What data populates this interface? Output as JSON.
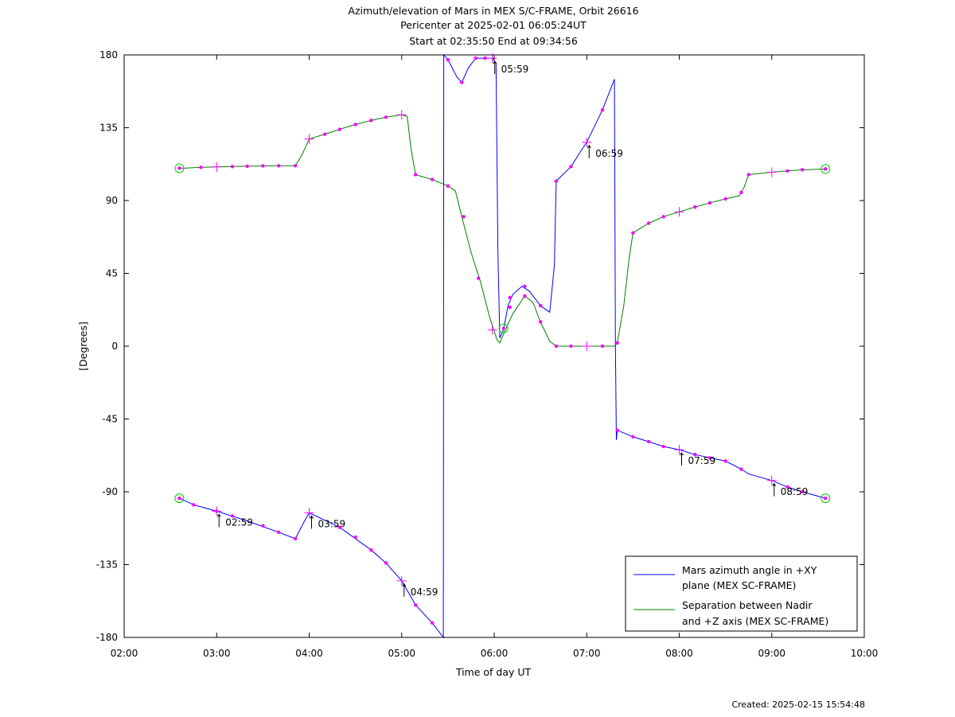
{
  "chart_data": {
    "type": "line",
    "title_lines": [
      "Azimuth/elevation of Mars in MEX S/C-FRAME,  Orbit 26616",
      "Pericenter at 2025-02-01 06:05:24UT",
      "Start at 02:35:50 End at 09:34:56"
    ],
    "xlabel": "Time of day UT",
    "ylabel": "[Degrees]",
    "x_unit": "hours",
    "xlim": [
      2,
      10
    ],
    "ylim": [
      -180,
      180
    ],
    "x_ticks": [
      2,
      3,
      4,
      5,
      6,
      7,
      8,
      9,
      10
    ],
    "x_tick_labels": [
      "02:00",
      "03:00",
      "04:00",
      "05:00",
      "06:00",
      "07:00",
      "08:00",
      "09:00",
      "10:00"
    ],
    "y_ticks": [
      180,
      135,
      90,
      45,
      0,
      -45,
      -90,
      -135,
      -180
    ],
    "y_tick_labels": [
      "180",
      "135",
      "90",
      "45",
      "0",
      "-45",
      "-90",
      "-135",
      "-180"
    ],
    "grid": false,
    "legend_position": "bottom-right",
    "series": [
      {
        "name": "Mars azimuth angle in +XY plane (MEX SC-FRAME)",
        "legend_lines": [
          "Mars azimuth angle in +XY",
          "plane (MEX SC-FRAME)"
        ],
        "color": "#0000ff",
        "points": [
          [
            2.597,
            -94
          ],
          [
            2.75,
            -98
          ],
          [
            3.0,
            -102
          ],
          [
            3.33,
            -108
          ],
          [
            3.67,
            -115
          ],
          [
            3.85,
            -119
          ],
          [
            3.95,
            -108
          ],
          [
            4.0,
            -103
          ],
          [
            4.33,
            -112
          ],
          [
            4.67,
            -126
          ],
          [
            4.83,
            -134
          ],
          [
            5.0,
            -145
          ],
          [
            5.05,
            -150
          ],
          [
            5.15,
            -160
          ],
          [
            5.33,
            -171
          ],
          [
            5.45,
            -180
          ],
          [
            5.455,
            180
          ],
          [
            5.5,
            177
          ],
          [
            5.6,
            166
          ],
          [
            5.65,
            163
          ],
          [
            5.72,
            172
          ],
          [
            5.8,
            178
          ],
          [
            5.98,
            178
          ],
          [
            6.02,
            175
          ],
          [
            6.04,
            60
          ],
          [
            6.06,
            5
          ],
          [
            6.1,
            10
          ],
          [
            6.15,
            25
          ],
          [
            6.2,
            32
          ],
          [
            6.3,
            37
          ],
          [
            6.38,
            34
          ],
          [
            6.5,
            25
          ],
          [
            6.6,
            21
          ],
          [
            6.65,
            50
          ],
          [
            6.67,
            102
          ],
          [
            6.83,
            111
          ],
          [
            6.93,
            120
          ],
          [
            7.0,
            126
          ],
          [
            7.17,
            146
          ],
          [
            7.3,
            165
          ],
          [
            7.31,
            0
          ],
          [
            7.32,
            -58
          ],
          [
            7.33,
            -52
          ],
          [
            7.5,
            -56
          ],
          [
            7.67,
            -59
          ],
          [
            7.83,
            -62
          ],
          [
            8.0,
            -64
          ],
          [
            8.17,
            -67
          ],
          [
            8.33,
            -69
          ],
          [
            8.5,
            -71
          ],
          [
            8.67,
            -76
          ],
          [
            8.75,
            -79
          ],
          [
            9.0,
            -83
          ],
          [
            9.17,
            -87
          ],
          [
            9.33,
            -90
          ],
          [
            9.58,
            -94
          ]
        ]
      },
      {
        "name": "Separation between Nadir and +Z axis (MEX SC-FRAME)",
        "legend_lines": [
          "Separation between Nadir",
          "and +Z axis (MEX SC-FRAME)"
        ],
        "color": "#008000",
        "points": [
          [
            2.597,
            110
          ],
          [
            2.67,
            110
          ],
          [
            2.83,
            110.5
          ],
          [
            3.0,
            110.8
          ],
          [
            3.33,
            111.2
          ],
          [
            3.67,
            111.5
          ],
          [
            3.85,
            111.5
          ],
          [
            3.92,
            118
          ],
          [
            4.0,
            128
          ],
          [
            4.17,
            131
          ],
          [
            4.33,
            134
          ],
          [
            4.5,
            137
          ],
          [
            4.67,
            139.5
          ],
          [
            4.83,
            141.5
          ],
          [
            5.0,
            143
          ],
          [
            5.06,
            142
          ],
          [
            5.1,
            122
          ],
          [
            5.15,
            106
          ],
          [
            5.33,
            103
          ],
          [
            5.5,
            99
          ],
          [
            5.58,
            96
          ],
          [
            5.65,
            80
          ],
          [
            5.75,
            58
          ],
          [
            5.85,
            40
          ],
          [
            5.95,
            18
          ],
          [
            6.03,
            4
          ],
          [
            6.06,
            2
          ],
          [
            6.12,
            10
          ],
          [
            6.2,
            20
          ],
          [
            6.33,
            31
          ],
          [
            6.42,
            27
          ],
          [
            6.5,
            15
          ],
          [
            6.6,
            3
          ],
          [
            6.67,
            0
          ],
          [
            7.0,
            0
          ],
          [
            7.3,
            0
          ],
          [
            7.33,
            2
          ],
          [
            7.4,
            25
          ],
          [
            7.46,
            55
          ],
          [
            7.5,
            70
          ],
          [
            7.67,
            76
          ],
          [
            7.83,
            80
          ],
          [
            8.0,
            83
          ],
          [
            8.17,
            86
          ],
          [
            8.33,
            88.5
          ],
          [
            8.5,
            91
          ],
          [
            8.65,
            93
          ],
          [
            8.7,
            98
          ],
          [
            8.75,
            106
          ],
          [
            9.0,
            107.5
          ],
          [
            9.17,
            108.3
          ],
          [
            9.33,
            109
          ],
          [
            9.58,
            109.5
          ]
        ]
      }
    ],
    "dot_markers": [
      [
        2.597,
        -94
      ],
      [
        2.75,
        -98
      ],
      [
        3.0,
        -102
      ],
      [
        3.17,
        -105
      ],
      [
        3.5,
        -111
      ],
      [
        3.67,
        -115
      ],
      [
        3.85,
        -119
      ],
      [
        4.33,
        -112
      ],
      [
        4.5,
        -118
      ],
      [
        4.67,
        -126
      ],
      [
        4.83,
        -134
      ],
      [
        5.15,
        -160
      ],
      [
        5.33,
        -171
      ],
      [
        5.5,
        177
      ],
      [
        5.65,
        163
      ],
      [
        5.8,
        178
      ],
      [
        5.9,
        178
      ],
      [
        6.17,
        30
      ],
      [
        6.33,
        37
      ],
      [
        6.5,
        25
      ],
      [
        6.67,
        102
      ],
      [
        6.83,
        111
      ],
      [
        7.17,
        146
      ],
      [
        7.33,
        -52
      ],
      [
        7.5,
        -56
      ],
      [
        7.67,
        -59
      ],
      [
        7.83,
        -62
      ],
      [
        8.17,
        -67
      ],
      [
        8.33,
        -69
      ],
      [
        8.5,
        -71
      ],
      [
        8.67,
        -76
      ],
      [
        9.17,
        -87
      ],
      [
        9.33,
        -90
      ],
      [
        9.58,
        -94
      ],
      [
        2.597,
        110
      ],
      [
        2.83,
        110.5
      ],
      [
        3.17,
        111
      ],
      [
        3.33,
        111.2
      ],
      [
        3.5,
        111.4
      ],
      [
        3.67,
        111.5
      ],
      [
        3.85,
        111.5
      ],
      [
        4.17,
        131
      ],
      [
        4.33,
        134
      ],
      [
        4.5,
        137
      ],
      [
        4.67,
        139.5
      ],
      [
        4.83,
        141.5
      ],
      [
        5.15,
        106
      ],
      [
        5.33,
        103
      ],
      [
        5.5,
        99
      ],
      [
        5.67,
        80
      ],
      [
        5.83,
        42
      ],
      [
        6.17,
        24
      ],
      [
        6.33,
        31
      ],
      [
        6.5,
        15
      ],
      [
        6.67,
        0
      ],
      [
        6.83,
        0
      ],
      [
        7.17,
        0
      ],
      [
        7.33,
        2
      ],
      [
        7.5,
        70
      ],
      [
        7.67,
        76
      ],
      [
        7.83,
        80
      ],
      [
        8.17,
        86
      ],
      [
        8.33,
        88.5
      ],
      [
        8.5,
        91
      ],
      [
        8.67,
        95
      ],
      [
        8.75,
        106
      ],
      [
        9.17,
        108.3
      ],
      [
        9.33,
        109
      ],
      [
        9.58,
        109.5
      ]
    ],
    "cross_markers": [
      [
        3.0,
        -102
      ],
      [
        4.0,
        -103
      ],
      [
        5.0,
        -145
      ],
      [
        5.98,
        178
      ],
      [
        7.0,
        126
      ],
      [
        8.0,
        -64
      ],
      [
        9.0,
        -83
      ],
      [
        3.0,
        110.8
      ],
      [
        4.0,
        128
      ],
      [
        5.0,
        143
      ],
      [
        5.98,
        10
      ],
      [
        7.0,
        0
      ],
      [
        8.0,
        83
      ],
      [
        9.0,
        107.5
      ]
    ],
    "circle_markers": [
      [
        2.597,
        -94
      ],
      [
        9.58,
        -94
      ],
      [
        2.597,
        110
      ],
      [
        9.58,
        109.5
      ],
      [
        6.1,
        11
      ]
    ],
    "annotations": [
      {
        "text": "02:59",
        "x": 3.0,
        "y": -102
      },
      {
        "text": "03:59",
        "x": 4.0,
        "y": -103
      },
      {
        "text": "04:59",
        "x": 5.0,
        "y": -145
      },
      {
        "text": "05:59",
        "x": 5.98,
        "y": 178
      },
      {
        "text": "06:59",
        "x": 7.0,
        "y": 126
      },
      {
        "text": "07:59",
        "x": 8.0,
        "y": -64
      },
      {
        "text": "08:59",
        "x": 9.0,
        "y": -83
      }
    ]
  },
  "footer": {
    "created": "Created: 2025-02-15 15:54:48"
  }
}
